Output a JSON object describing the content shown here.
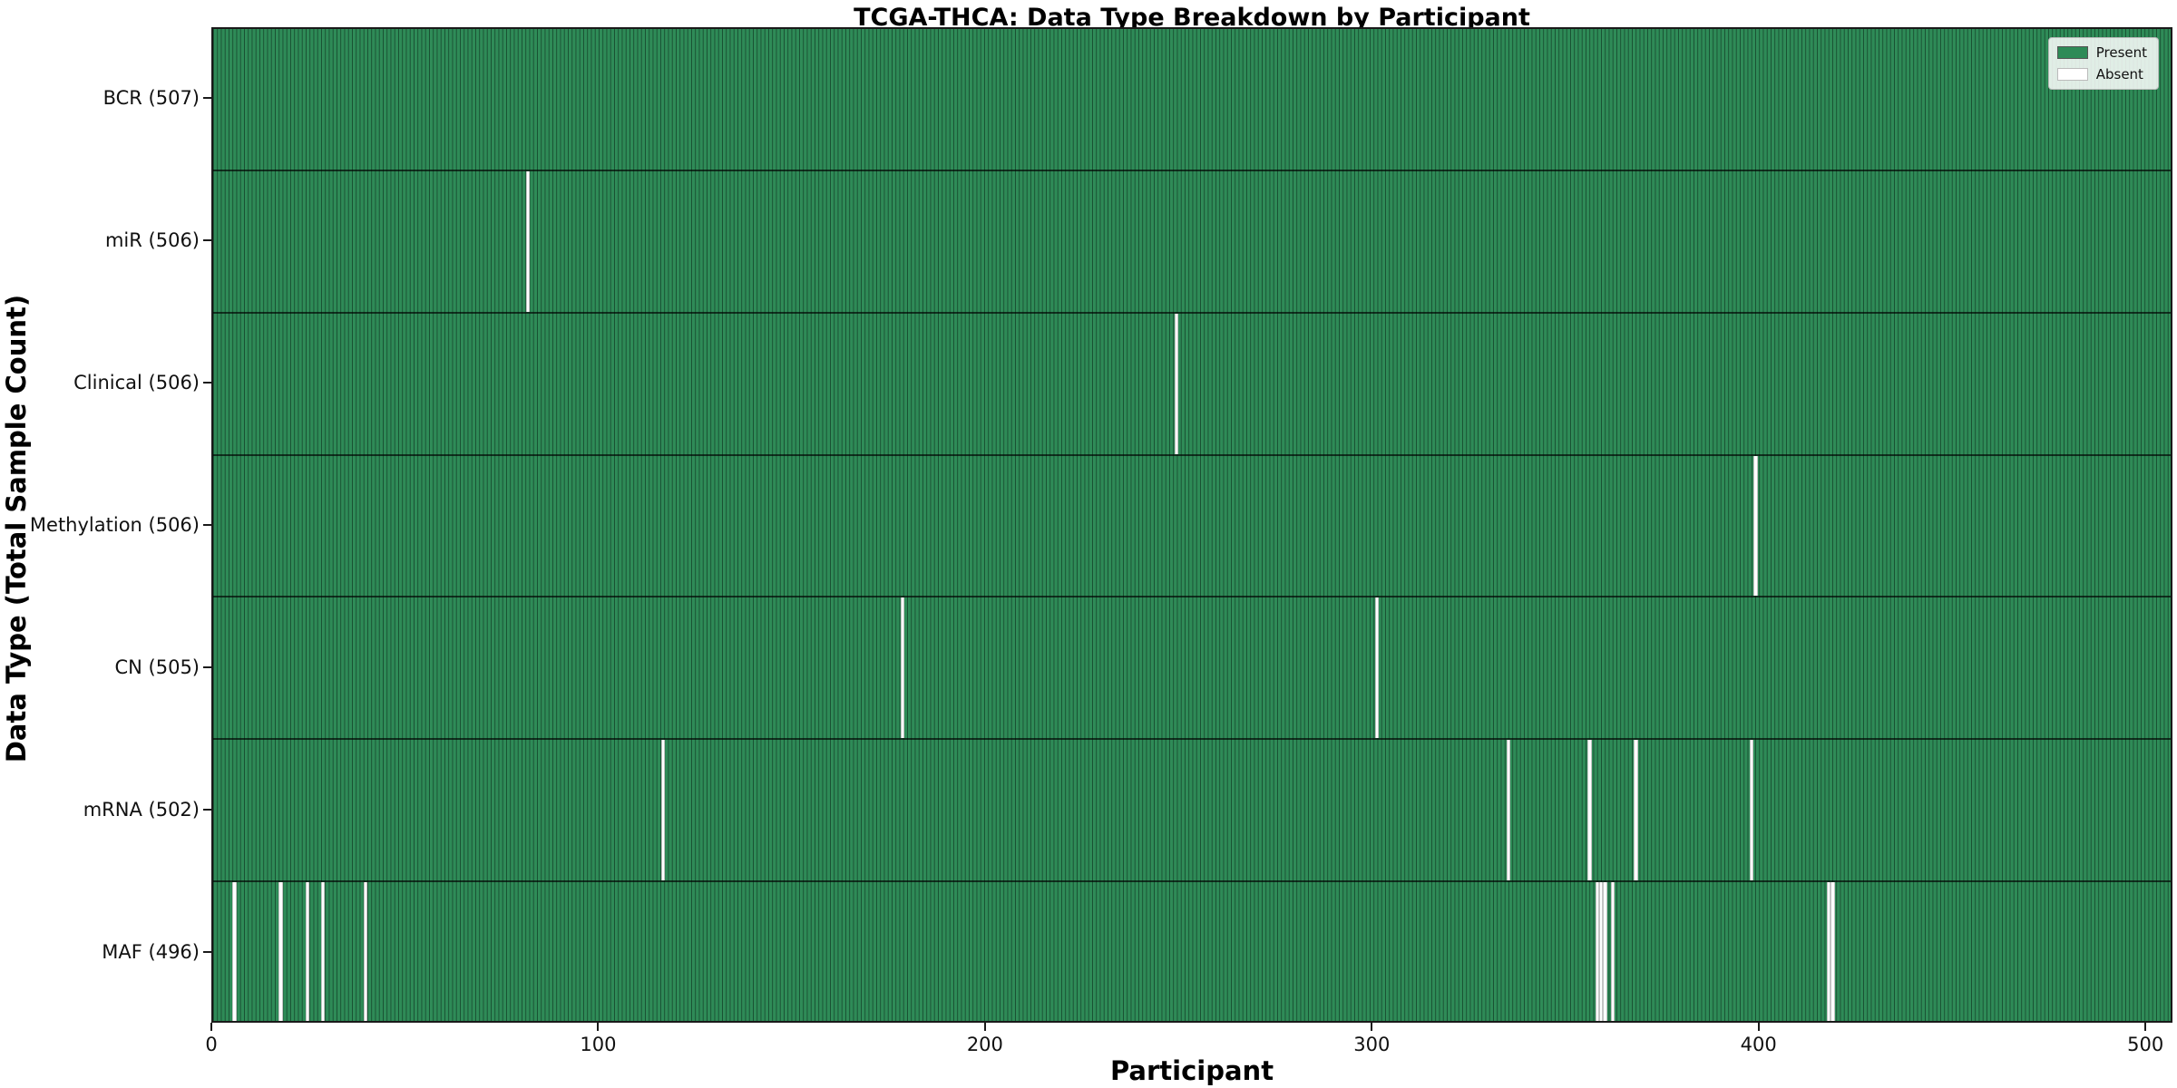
{
  "figure": {
    "title": "TCGA-THCA: Data Type Breakdown by Participant"
  },
  "axes": {
    "xlabel": "Participant",
    "ylabel": "Data Type (Total Sample Count)"
  },
  "legend": {
    "present_label": "Present",
    "absent_label": "Absent"
  },
  "colors": {
    "present": "#2e8b57",
    "absent": "#ffffff",
    "bar_edge": "rgba(5,30,18,0.55)",
    "spine": "#1a1a1a"
  },
  "chart_data": {
    "type": "heatmap",
    "title": "TCGA-THCA: Data Type Breakdown by Participant",
    "xlabel": "Participant",
    "ylabel": "Data Type (Total Sample Count)",
    "n_participants": 507,
    "xlim": [
      0,
      507
    ],
    "x_ticks": [
      0,
      100,
      200,
      300,
      400,
      500
    ],
    "legend": [
      {
        "label": "Present",
        "color": "#2e8b57"
      },
      {
        "label": "Absent",
        "color": "#ffffff"
      }
    ],
    "legend_position": "upper right",
    "rows": [
      {
        "label": "BCR (507)",
        "data_type": "BCR",
        "total": 507,
        "absent_participants": []
      },
      {
        "label": "miR (506)",
        "data_type": "miR",
        "total": 506,
        "absent_participants": [
          81
        ]
      },
      {
        "label": "Clinical (506)",
        "data_type": "Clinical",
        "total": 506,
        "absent_participants": [
          249
        ]
      },
      {
        "label": "Methylation (506)",
        "data_type": "Methylation",
        "total": 506,
        "absent_participants": [
          399
        ]
      },
      {
        "label": "CN (505)",
        "data_type": "CN",
        "total": 505,
        "absent_participants": [
          178,
          301
        ]
      },
      {
        "label": "mRNA (502)",
        "data_type": "mRNA",
        "total": 502,
        "absent_participants": [
          116,
          335,
          356,
          368,
          398
        ]
      },
      {
        "label": "MAF (496)",
        "data_type": "MAF",
        "total": 496,
        "absent_participants": [
          5,
          17,
          24,
          28,
          39,
          358,
          359,
          360,
          362,
          418,
          419
        ]
      }
    ]
  }
}
